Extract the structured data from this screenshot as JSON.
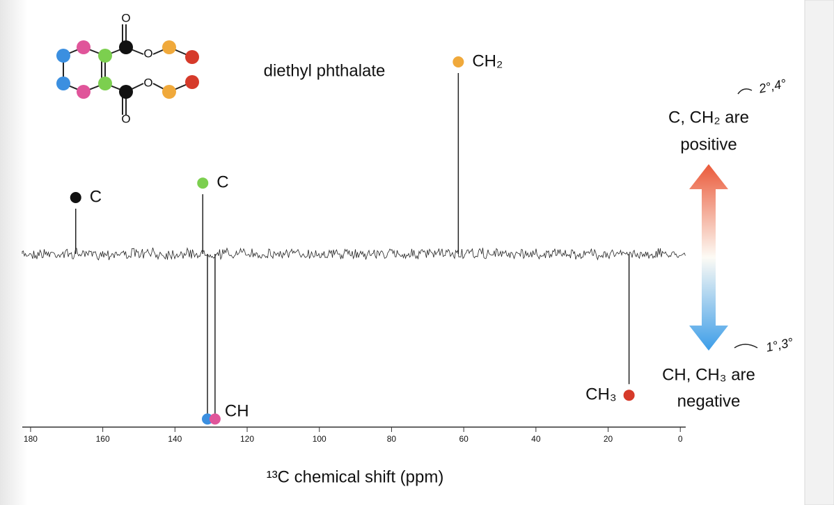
{
  "chart_data": {
    "type": "stem",
    "title": "diethyl phthalate",
    "xlabel": "¹³C chemical shift (ppm)",
    "x": [
      167.5,
      132.3,
      131.0,
      128.9,
      61.5,
      14.2
    ],
    "values": [
      0.25,
      0.33,
      -0.89,
      -0.89,
      1,
      -0.72
    ],
    "labels": [
      "C",
      "C",
      "CH",
      null,
      "CH₂",
      "CH₃"
    ],
    "colors": [
      "#111111",
      "#7ccf4f",
      "#3b8fe0",
      "#e0559a",
      "#f0a93b",
      "#d63a2a"
    ],
    "xlim": [
      182.3,
      -1.5
    ],
    "ylim": [
      -0.95,
      1.05
    ],
    "xticks": [
      180,
      160,
      140,
      120,
      100,
      80,
      60,
      40,
      20,
      0
    ],
    "legend": {
      "positive": [
        "C, CH₂ are",
        "positive"
      ],
      "negative": [
        "CH, CH₃ are",
        "negative"
      ]
    },
    "annotations": [
      "2°,4°",
      "1°,3°"
    ]
  },
  "molecule": {
    "atom_labels": [
      "O",
      "O",
      "O",
      "O"
    ]
  }
}
